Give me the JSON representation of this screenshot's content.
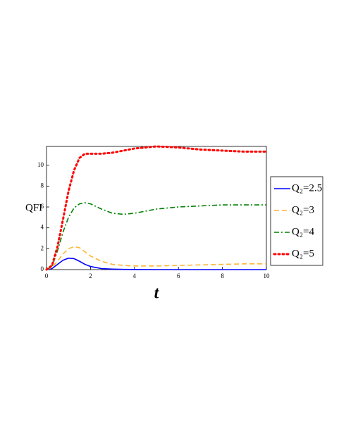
{
  "chart_data": {
    "type": "line",
    "x_label": "t",
    "y_label": "QFI",
    "x": [
      0,
      0.25,
      0.5,
      0.75,
      1,
      1.25,
      1.5,
      1.75,
      2,
      2.5,
      3,
      3.5,
      4,
      5,
      6,
      7,
      8,
      9,
      10
    ],
    "series": [
      {
        "name": "Q₂=2.5",
        "color": "#0000ff",
        "dash": "solid",
        "values": [
          0,
          0.1,
          0.5,
          0.9,
          1.1,
          1.05,
          0.8,
          0.5,
          0.3,
          0.1,
          0.05,
          0.02,
          0.01,
          0,
          0,
          0,
          0,
          0,
          0
        ]
      },
      {
        "name": "Q₂=3",
        "color": "#ffb533",
        "dash": "dashed",
        "values": [
          0,
          0.2,
          0.8,
          1.5,
          2.0,
          2.2,
          2.1,
          1.7,
          1.3,
          0.8,
          0.5,
          0.4,
          0.35,
          0.35,
          0.4,
          0.45,
          0.5,
          0.55,
          0.55
        ]
      },
      {
        "name": "Q₂=4",
        "color": "#008000",
        "dash": "dashdot",
        "values": [
          0,
          0.3,
          1.8,
          3.6,
          5.0,
          5.9,
          6.3,
          6.4,
          6.3,
          5.8,
          5.4,
          5.3,
          5.4,
          5.8,
          6.0,
          6.1,
          6.2,
          6.2,
          6.2
        ]
      },
      {
        "name": "Q₂=5",
        "color": "#ff0000",
        "dash": "dotted",
        "values": [
          0,
          0.4,
          2.2,
          4.8,
          7.5,
          9.5,
          10.7,
          11.1,
          11.1,
          11.1,
          11.2,
          11.4,
          11.6,
          11.8,
          11.7,
          11.5,
          11.4,
          11.3,
          11.3
        ]
      }
    ],
    "xlim": [
      0,
      10
    ],
    "xticks": [
      0,
      2,
      4,
      6,
      8,
      10
    ],
    "ylim": [
      0,
      11.8
    ],
    "yticks": [
      0,
      2,
      4,
      6,
      8,
      10
    ],
    "legend": "right"
  }
}
